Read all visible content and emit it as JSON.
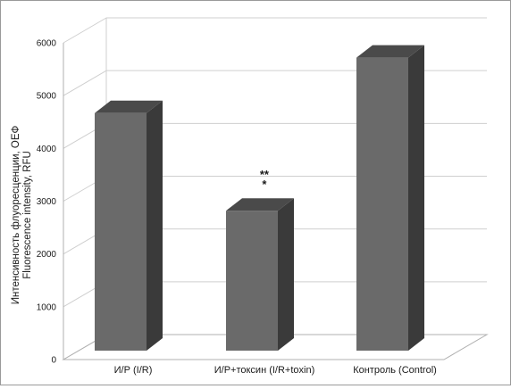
{
  "chart_data": {
    "type": "bar",
    "categories": [
      "И/Р (I/R)",
      "И/Р+токсин (I/R+toxin)",
      "Контроль (Control)"
    ],
    "values": [
      4500,
      2650,
      5550
    ],
    "ylabel_ru": "Интенсивность флуоресценции, ОЕФ",
    "ylabel_en": "Fluorescence intensity, RFU",
    "ylim": [
      0,
      6000
    ],
    "ytick_labels": [
      "0",
      "1000",
      "2000",
      "3000",
      "4000",
      "5000",
      "6000"
    ],
    "annotations": [
      {
        "category_index": 1,
        "text_line1": "**",
        "text_line2": "*"
      }
    ],
    "grid": true,
    "style": "3d",
    "colors": {
      "bar_front": "#6a6a6a",
      "bar_side": "#3a3a3a",
      "bar_top": "#4a4a4a",
      "grid": "#cfcfcf",
      "axis": "#b0b0b0"
    }
  }
}
